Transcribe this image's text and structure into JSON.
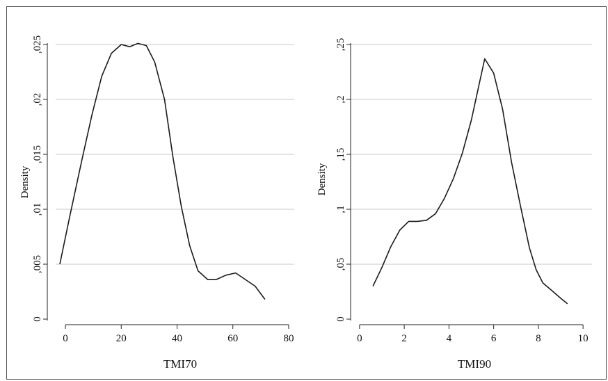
{
  "chart_data": [
    {
      "type": "line",
      "xlabel": "TMI70",
      "ylabel": "Density",
      "xlim": [
        -3.5,
        82
      ],
      "ylim": [
        0,
        0.025
      ],
      "xticks": [
        0,
        20,
        40,
        60,
        80
      ],
      "yticks": [
        0,
        0.005,
        0.01,
        0.015,
        0.02,
        0.025
      ],
      "xtick_labels": [
        "0",
        "20",
        "40",
        "60",
        "80"
      ],
      "ytick_labels": [
        "0",
        ",005",
        ",01",
        ",015",
        ",02",
        ",025"
      ],
      "grid": true,
      "series": [
        {
          "x": [
            -2,
            1.5,
            6,
            9.5,
            13,
            16.5,
            20,
            23,
            26,
            29,
            32,
            35.5,
            38.5,
            41.5,
            44.5,
            47.5,
            51,
            54,
            57.5,
            61,
            64.5,
            68,
            71.5
          ],
          "y": [
            0.005,
            0.0093,
            0.0146,
            0.0186,
            0.0221,
            0.0242,
            0.025,
            0.0248,
            0.0251,
            0.0249,
            0.0234,
            0.02,
            0.0148,
            0.0103,
            0.0067,
            0.0044,
            0.0036,
            0.0036,
            0.004,
            0.0042,
            0.0036,
            0.003,
            0.0018
          ]
        }
      ]
    },
    {
      "type": "line",
      "xlabel": "TMI90",
      "ylabel": "Density",
      "xlim": [
        -0.4,
        10.4
      ],
      "ylim": [
        0,
        0.25
      ],
      "xticks": [
        0,
        2,
        4,
        6,
        8,
        10
      ],
      "yticks": [
        0,
        0.05,
        0.1,
        0.15,
        0.2,
        0.25
      ],
      "xtick_labels": [
        "0",
        "2",
        "4",
        "6",
        "8",
        "10"
      ],
      "ytick_labels": [
        "0",
        ",05",
        ",1",
        ",15",
        ",2",
        ",25"
      ],
      "grid": true,
      "series": [
        {
          "x": [
            0.6,
            1.0,
            1.4,
            1.8,
            2.2,
            2.6,
            3.0,
            3.4,
            3.8,
            4.2,
            4.6,
            5.0,
            5.3,
            5.6,
            6.0,
            6.4,
            6.8,
            7.2,
            7.6,
            7.9,
            8.2,
            8.6,
            9.0,
            9.3
          ],
          "y": [
            0.03,
            0.047,
            0.066,
            0.081,
            0.089,
            0.089,
            0.09,
            0.096,
            0.11,
            0.128,
            0.151,
            0.181,
            0.209,
            0.237,
            0.224,
            0.191,
            0.143,
            0.103,
            0.065,
            0.045,
            0.033,
            0.026,
            0.019,
            0.014
          ]
        }
      ]
    }
  ]
}
